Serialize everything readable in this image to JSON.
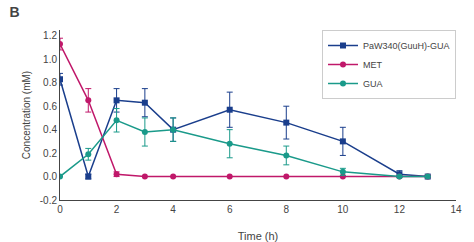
{
  "chart_data": {
    "type": "line",
    "title": "B",
    "x_label": "Time (h)",
    "y_label": "Concentration (mM)",
    "xlim": [
      0,
      14
    ],
    "xticks": [
      0,
      2,
      4,
      6,
      8,
      10,
      12,
      14
    ],
    "ylim": [
      -0.2,
      1.25
    ],
    "yticks": [
      {
        "value": -0.2,
        "label": "-0.2"
      },
      {
        "value": 0.0,
        "label": "0.0"
      },
      0.2,
      0.4,
      0.6,
      0.8,
      {
        "value": 1.0,
        "label": "1.0"
      },
      1.2
    ],
    "grid": false,
    "legend": "upper right",
    "series": [
      {
        "name": "PaW340(GuuH)-GUA",
        "color": "#1a3e8c",
        "marker": "square",
        "line_style": "solid",
        "x": [
          0,
          1,
          2,
          3,
          4,
          6,
          8,
          10,
          12,
          13
        ],
        "values": [
          0.83,
          0.0,
          0.65,
          0.63,
          0.4,
          0.57,
          0.46,
          0.3,
          0.02,
          0.0
        ],
        "errors": [
          0.05,
          0.02,
          0.1,
          0.12,
          0.1,
          0.15,
          0.14,
          0.12,
          0.03,
          0.01
        ]
      },
      {
        "name": "MET",
        "color": "#c0186a",
        "marker": "circle",
        "line_style": "solid",
        "x": [
          0,
          1,
          2,
          3,
          4,
          6,
          8,
          10,
          12,
          13
        ],
        "values": [
          1.13,
          0.65,
          0.02,
          0.0,
          0.0,
          0.0,
          0.0,
          0.0,
          0.0,
          0.0
        ],
        "errors": [
          0.05,
          0.1,
          0.02,
          0.0,
          0.0,
          0.0,
          0.0,
          0.0,
          0.0,
          0.0
        ]
      },
      {
        "name": "GUA",
        "color": "#1a9a8a",
        "marker": "circle",
        "line_style": "solid",
        "x": [
          0,
          1,
          2,
          3,
          4,
          6,
          8,
          10,
          12,
          13
        ],
        "values": [
          0.0,
          0.19,
          0.48,
          0.38,
          0.4,
          0.28,
          0.18,
          0.04,
          0.0,
          0.0
        ],
        "errors": [
          0.0,
          0.05,
          0.1,
          0.12,
          0.1,
          0.12,
          0.08,
          0.03,
          0.0,
          0.0
        ]
      }
    ]
  }
}
